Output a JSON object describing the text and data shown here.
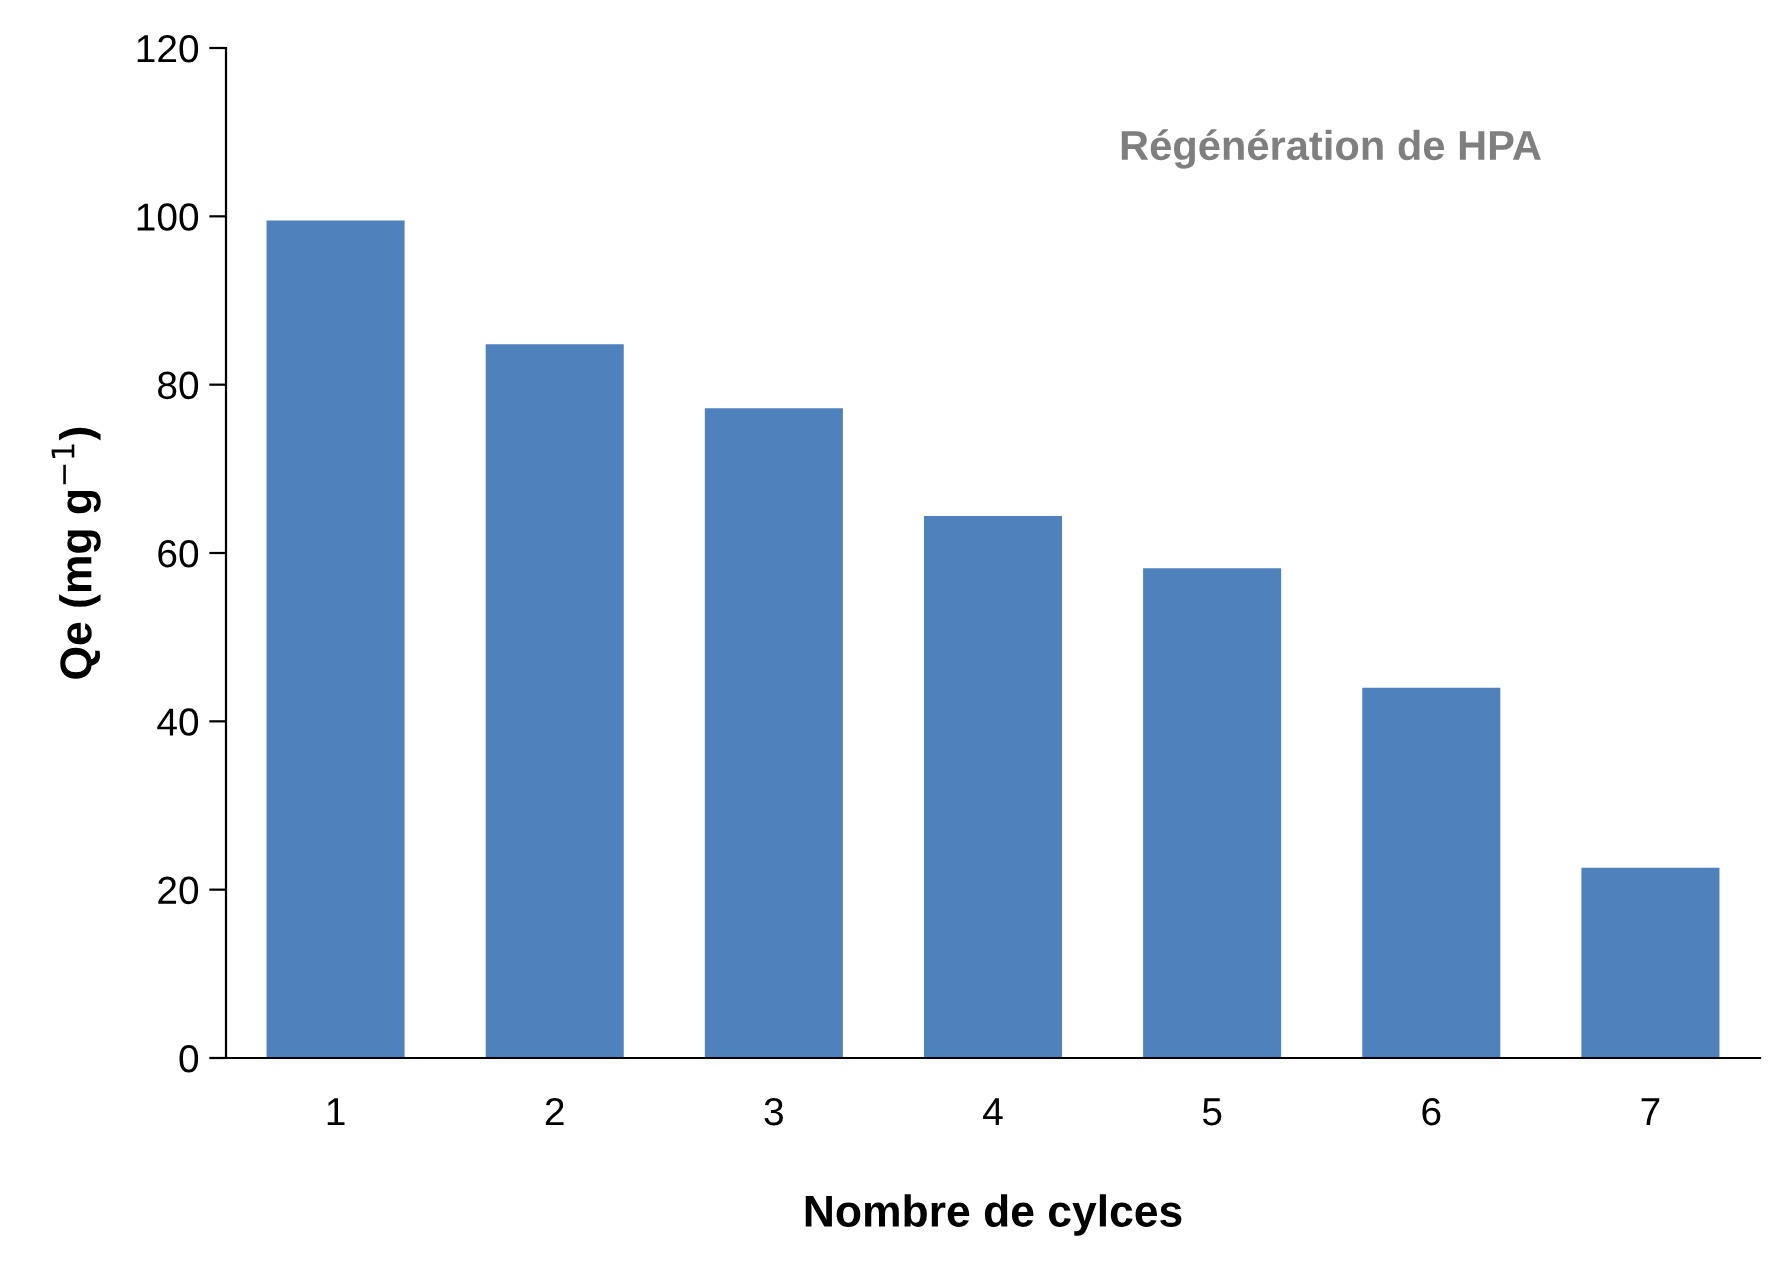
{
  "chart_data": {
    "type": "bar",
    "title": "Régénération de HPA",
    "xlabel": "Nombre de cylces",
    "ylabel": "Qe (mg g$^{−1}$)",
    "categories": [
      "1",
      "2",
      "3",
      "4",
      "5",
      "6",
      "7"
    ],
    "values": [
      99.5,
      84.8,
      77.2,
      64.4,
      58.2,
      44.0,
      22.6
    ],
    "color": "#4f81bd",
    "ylim": [
      0,
      120
    ],
    "yticks": [
      0,
      20,
      40,
      60,
      80,
      100,
      120
    ],
    "grid": false,
    "legend": false
  }
}
